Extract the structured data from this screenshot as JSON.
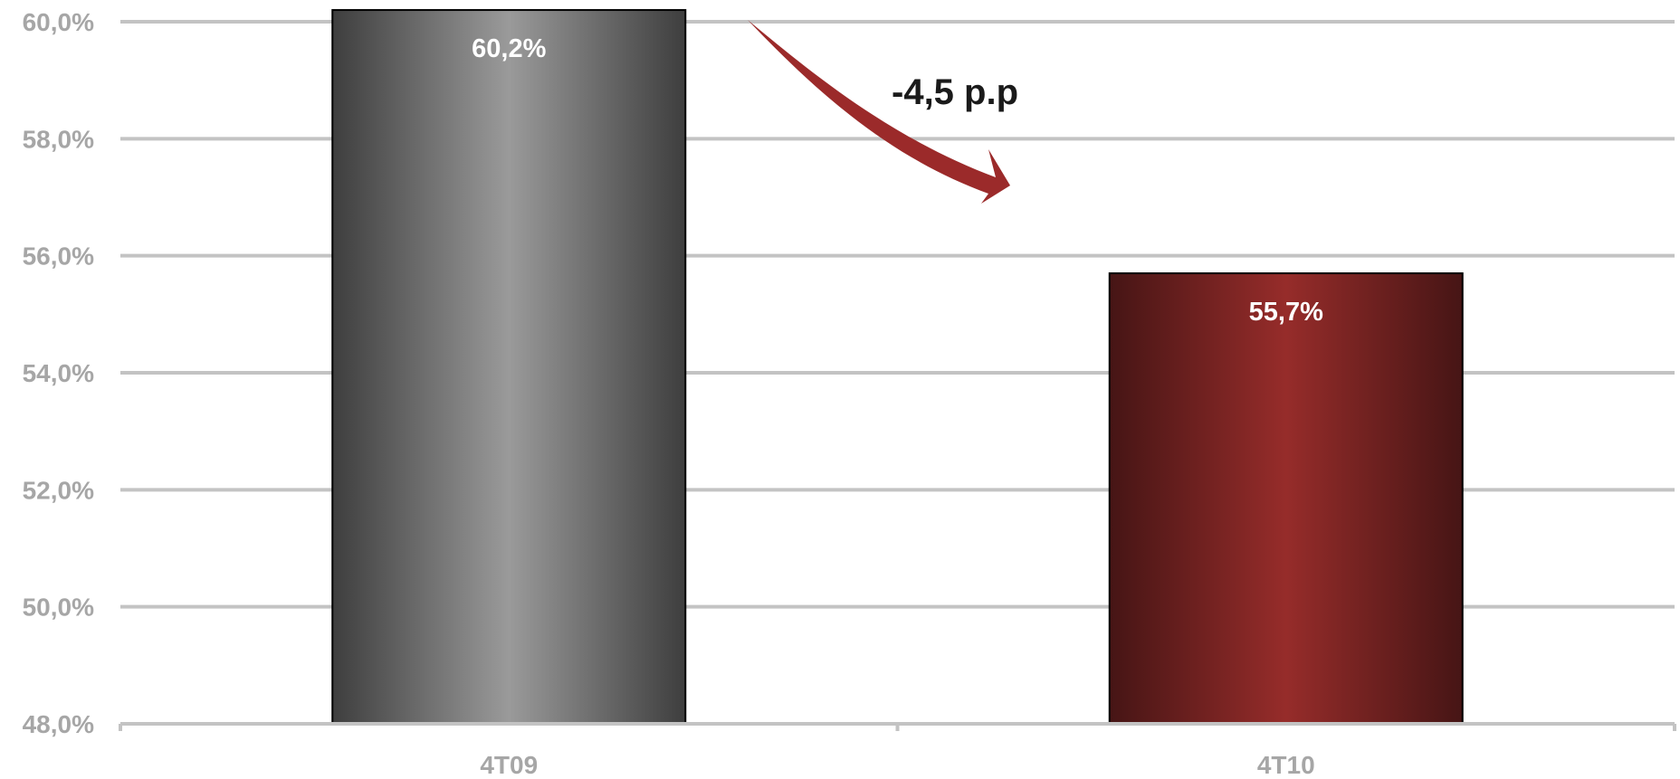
{
  "chart_data": {
    "type": "bar",
    "categories": [
      "4T09",
      "4T10"
    ],
    "values": [
      60.2,
      55.7
    ],
    "value_labels": [
      "60,2%",
      "55,7%"
    ],
    "ylim": [
      48.0,
      60.0
    ],
    "y_ticks": [
      48.0,
      50.0,
      52.0,
      54.0,
      56.0,
      58.0,
      60.0
    ],
    "y_tick_labels": [
      "48,0%",
      "50,0%",
      "52,0%",
      "54,0%",
      "56,0%",
      "58,0%",
      "60,0%"
    ],
    "grid": true,
    "annotation": {
      "text": "-4,5 p.p",
      "arrow": "curved-down-right"
    },
    "colors": {
      "bar_4T09": "#8c8c8c",
      "bar_4T10": "#8b2a28",
      "arrow": "#9b2a2a",
      "grid": "#c3c3c3",
      "axis_text": "#a6a6a6"
    }
  }
}
